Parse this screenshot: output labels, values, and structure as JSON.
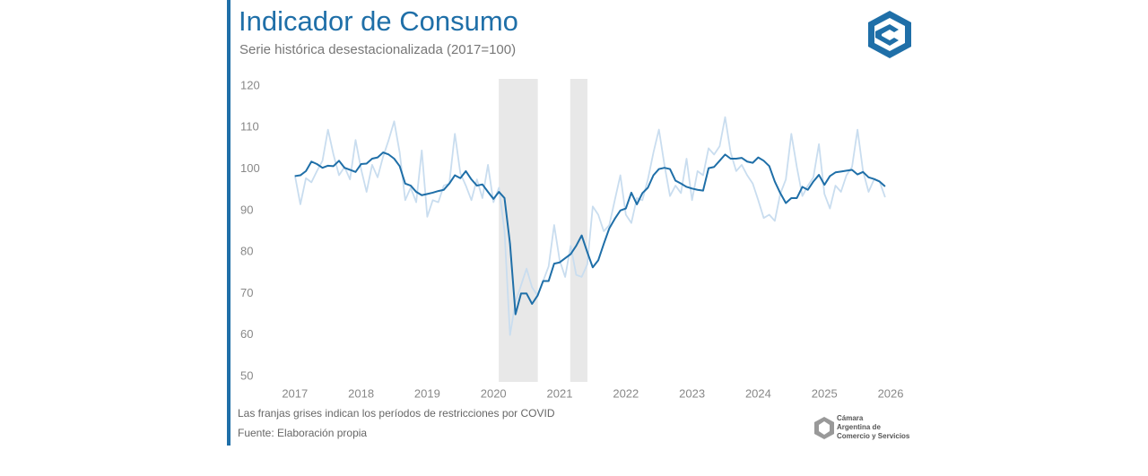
{
  "chart_data": {
    "type": "line",
    "title": "Indicador de Consumo",
    "subtitle": "Serie histórica desestacionalizada (2017=100)",
    "notes": [
      "Las franjas grises indican los períodos de restricciones por COVID",
      "Fuente: Elaboración propia"
    ],
    "logo_text": [
      "Cámara",
      "Argentina de",
      "Comercio y Servicios"
    ],
    "xlim": [
      2016.61,
      2026.23
    ],
    "xticks": [
      2017,
      2018,
      2019,
      2020,
      2021,
      2022,
      2023,
      2024,
      2025,
      2026
    ],
    "ylim": [
      50,
      120
    ],
    "yticks": [
      50,
      60,
      70,
      80,
      90,
      100,
      110,
      120
    ],
    "grid": false,
    "shaded_periods": [
      [
        2020.08,
        2020.67
      ],
      [
        2021.16,
        2021.42
      ]
    ],
    "shade_color": "#e8e8e8",
    "x": [
      2017,
      2017.083,
      2017.167,
      2017.25,
      2017.333,
      2017.417,
      2017.5,
      2017.583,
      2017.667,
      2017.75,
      2017.833,
      2017.917,
      2018,
      2018.083,
      2018.167,
      2018.25,
      2018.333,
      2018.417,
      2018.5,
      2018.583,
      2018.667,
      2018.75,
      2018.833,
      2018.917,
      2019,
      2019.083,
      2019.167,
      2019.25,
      2019.333,
      2019.417,
      2019.5,
      2019.583,
      2019.667,
      2019.75,
      2019.833,
      2019.917,
      2020,
      2020.083,
      2020.167,
      2020.25,
      2020.333,
      2020.417,
      2020.5,
      2020.583,
      2020.667,
      2020.75,
      2020.833,
      2020.917,
      2021,
      2021.083,
      2021.167,
      2021.25,
      2021.333,
      2021.417,
      2021.5,
      2021.583,
      2021.667,
      2021.75,
      2021.833,
      2021.917,
      2022,
      2022.083,
      2022.167,
      2022.25,
      2022.333,
      2022.417,
      2022.5,
      2022.583,
      2022.667,
      2022.75,
      2022.833,
      2022.917,
      2023,
      2023.083,
      2023.167,
      2023.25,
      2023.333,
      2023.417,
      2023.5,
      2023.583,
      2023.667,
      2023.75,
      2023.833,
      2023.917,
      2024,
      2024.083,
      2024.167,
      2024.25,
      2024.333,
      2024.417,
      2024.5,
      2024.583,
      2024.667,
      2024.75,
      2024.833,
      2024.917,
      2025,
      2025.083,
      2025.167,
      2025.25,
      2025.333,
      2025.417,
      2025.5,
      2025.583,
      2025.667,
      2025.75,
      2025.833,
      2025.917
    ],
    "series": [
      {
        "color": "#c9ddef",
        "width": 1.8,
        "values": [
          98.5,
          91.5,
          97.8,
          96.8,
          99.5,
          102,
          109.5,
          103.5,
          98.5,
          100.5,
          97.5,
          107,
          100,
          94.5,
          101,
          98,
          103,
          107,
          111.5,
          104,
          92.5,
          95.5,
          92,
          104.5,
          88.5,
          92.5,
          92,
          96,
          96.5,
          108.5,
          99,
          96,
          92.5,
          97.5,
          93,
          101,
          92,
          95.5,
          85,
          60,
          68,
          72,
          76,
          71.5,
          69.5,
          73,
          76.5,
          86.5,
          78,
          74,
          81.5,
          74.5,
          74,
          77,
          91,
          89,
          85,
          86.5,
          92.5,
          98.5,
          89,
          87,
          93,
          92.5,
          97.5,
          104,
          109.5,
          101,
          93.5,
          96,
          94.2,
          102.5,
          92.5,
          99.5,
          98.5,
          105,
          103.5,
          105.5,
          112.5,
          104,
          99.5,
          101,
          98.5,
          96.5,
          92.5,
          88.2,
          89,
          87.5,
          94,
          97.5,
          108.5,
          100.5,
          93.5,
          96,
          98,
          106,
          94,
          90.5,
          96,
          94.5,
          98.5,
          100.5,
          109.5,
          99.5,
          94.5,
          97.5,
          97,
          93.2
        ]
      },
      {
        "color": "#1f6fa8",
        "width": 2,
        "values": [
          98.3,
          98.5,
          99.5,
          101.8,
          101.2,
          100.3,
          100.8,
          100.7,
          102,
          100.3,
          99.8,
          99.3,
          101.2,
          101.3,
          102.5,
          102.8,
          104,
          103.5,
          102.5,
          100.7,
          96.5,
          96,
          94.5,
          93.7,
          94,
          94.3,
          94.7,
          95,
          96.5,
          98.5,
          97.8,
          99.5,
          97.5,
          96,
          96.3,
          94.5,
          92.8,
          94.5,
          93,
          82,
          65,
          70,
          70,
          67.5,
          69.5,
          73,
          73,
          77.2,
          77.5,
          78.5,
          79.5,
          81.5,
          84,
          80,
          76.3,
          78,
          82,
          85.7,
          88,
          90,
          90.5,
          94.3,
          91.5,
          94.2,
          95.5,
          98.5,
          100,
          100.3,
          100,
          97.2,
          96.5,
          95.7,
          95.3,
          95,
          94.8,
          100.2,
          100.5,
          102,
          103.5,
          102.5,
          102.5,
          102.7,
          101.8,
          101.5,
          102.8,
          102,
          100.7,
          97,
          94.2,
          91.8,
          93,
          93,
          95.7,
          95,
          97,
          98.6,
          96.2,
          98.3,
          99.2,
          99.4,
          99.6,
          99.8,
          98.7,
          99.3,
          98,
          97.6,
          97,
          95.8
        ]
      }
    ]
  }
}
